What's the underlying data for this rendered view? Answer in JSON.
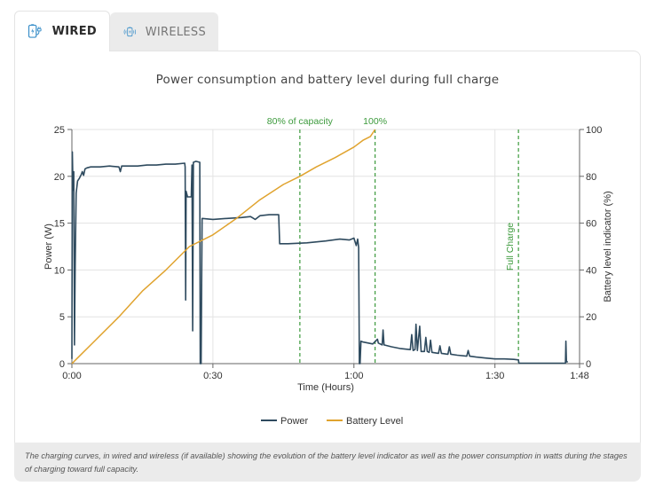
{
  "tabs": [
    {
      "label": "WIRED",
      "icon": "battery-plug-icon",
      "active": true
    },
    {
      "label": "WIRELESS",
      "icon": "wireless-battery-icon",
      "active": false
    }
  ],
  "colors": {
    "power": "#2e4a5e",
    "battery": "#e0a32e",
    "annotation": "#3c9a3c",
    "grid": "#e3e3e3"
  },
  "chart_data": {
    "type": "line",
    "title": "Power consumption and battery level during full charge",
    "xlabel": "Time (Hours)",
    "ylabel_left": "Power (W)",
    "ylabel_right": "Battery level indicator (%)",
    "xlim_minutes": [
      0,
      108
    ],
    "x_tick_labels": [
      "0:00",
      "0:30",
      "1:00",
      "1:30",
      "1:48"
    ],
    "x_tick_minutes": [
      0,
      30,
      60,
      90,
      108
    ],
    "ylim_left": [
      0,
      25
    ],
    "y_left_ticks": [
      0,
      5,
      10,
      15,
      20,
      25
    ],
    "ylim_right": [
      0,
      100
    ],
    "y_right_ticks": [
      0,
      20,
      40,
      60,
      80,
      100
    ],
    "grid": true,
    "legend": "bottom",
    "annotations": [
      {
        "label": "80% of capacity",
        "x_minutes": 48.5,
        "orientation": "horizontal"
      },
      {
        "label": "100%",
        "x_minutes": 64.5,
        "orientation": "horizontal"
      },
      {
        "label": "Full Charge",
        "x_minutes": 95,
        "orientation": "vertical"
      }
    ],
    "series": [
      {
        "name": "Power",
        "axis": "left",
        "points": [
          [
            0,
            0.5
          ],
          [
            0.1,
            22.6
          ],
          [
            0.25,
            18.5
          ],
          [
            0.4,
            20.5
          ],
          [
            0.55,
            2.0
          ],
          [
            0.7,
            10.3
          ],
          [
            0.9,
            18.2
          ],
          [
            1.2,
            19.5
          ],
          [
            1.6,
            19.8
          ],
          [
            2.0,
            20.2
          ],
          [
            2.2,
            20.5
          ],
          [
            2.5,
            20.1
          ],
          [
            2.8,
            20.8
          ],
          [
            3.2,
            20.9
          ],
          [
            4,
            21.0
          ],
          [
            6,
            21.0
          ],
          [
            8,
            21.1
          ],
          [
            10,
            21.0
          ],
          [
            10.3,
            20.5
          ],
          [
            10.6,
            21.1
          ],
          [
            14,
            21.1
          ],
          [
            16,
            21.2
          ],
          [
            18,
            21.2
          ],
          [
            20,
            21.3
          ],
          [
            22,
            21.3
          ],
          [
            24,
            21.4
          ],
          [
            24.1,
            21.0
          ],
          [
            24.2,
            6.8
          ],
          [
            24.3,
            18.4
          ],
          [
            24.6,
            17.8
          ],
          [
            25.4,
            17.8
          ],
          [
            25.55,
            21.2
          ],
          [
            25.7,
            3.5
          ],
          [
            25.85,
            21.5
          ],
          [
            26.4,
            21.6
          ],
          [
            27.2,
            21.5
          ],
          [
            27.3,
            0.0
          ],
          [
            27.5,
            0.0
          ],
          [
            27.7,
            15.5
          ],
          [
            30,
            15.4
          ],
          [
            33,
            15.5
          ],
          [
            36,
            15.6
          ],
          [
            38,
            15.7
          ],
          [
            39,
            15.4
          ],
          [
            40,
            15.8
          ],
          [
            42,
            15.9
          ],
          [
            44,
            15.9
          ],
          [
            44.2,
            12.8
          ],
          [
            46,
            12.8
          ],
          [
            50,
            12.9
          ],
          [
            54,
            13.1
          ],
          [
            57,
            13.3
          ],
          [
            59,
            13.2
          ],
          [
            60,
            13.4
          ],
          [
            60.5,
            12.6
          ],
          [
            60.8,
            13.3
          ],
          [
            61.0,
            12.4
          ],
          [
            61.15,
            0.0
          ],
          [
            61.3,
            0.0
          ],
          [
            61.5,
            2.4
          ],
          [
            62,
            2.3
          ],
          [
            64,
            2.1
          ],
          [
            65,
            2.6
          ],
          [
            65.2,
            2.2
          ],
          [
            66,
            2.0
          ],
          [
            66.2,
            3.6
          ],
          [
            66.4,
            2.0
          ],
          [
            68,
            1.8
          ],
          [
            70,
            1.6
          ],
          [
            72,
            1.5
          ],
          [
            72.3,
            3.1
          ],
          [
            72.6,
            1.4
          ],
          [
            73,
            1.5
          ],
          [
            73.2,
            4.2
          ],
          [
            73.5,
            1.4
          ],
          [
            74,
            4.0
          ],
          [
            74.3,
            1.3
          ],
          [
            75,
            1.3
          ],
          [
            75.3,
            2.8
          ],
          [
            75.6,
            1.3
          ],
          [
            76,
            1.2
          ],
          [
            76.3,
            2.5
          ],
          [
            76.6,
            1.2
          ],
          [
            78,
            1.1
          ],
          [
            78.3,
            1.9
          ],
          [
            78.6,
            1.1
          ],
          [
            80,
            1.0
          ],
          [
            80.3,
            1.8
          ],
          [
            80.6,
            1.0
          ],
          [
            82,
            0.9
          ],
          [
            84,
            0.8
          ],
          [
            84.3,
            1.4
          ],
          [
            84.6,
            0.8
          ],
          [
            86,
            0.7
          ],
          [
            88,
            0.6
          ],
          [
            90,
            0.5
          ],
          [
            92,
            0.5
          ],
          [
            94,
            0.45
          ],
          [
            95,
            0.4
          ],
          [
            95.1,
            0.05
          ],
          [
            100,
            0.05
          ],
          [
            104,
            0.05
          ],
          [
            105,
            0.05
          ],
          [
            105.1,
            2.4
          ],
          [
            105.2,
            0.2
          ],
          [
            105.5,
            0.2
          ]
        ]
      },
      {
        "name": "Battery Level",
        "axis": "right",
        "points": [
          [
            0,
            0
          ],
          [
            1,
            2
          ],
          [
            5,
            10
          ],
          [
            10,
            20
          ],
          [
            15,
            31
          ],
          [
            20,
            40
          ],
          [
            25,
            50
          ],
          [
            30,
            55
          ],
          [
            35,
            62
          ],
          [
            40,
            70
          ],
          [
            45,
            76.5
          ],
          [
            48.5,
            80
          ],
          [
            52,
            84
          ],
          [
            56,
            88
          ],
          [
            60,
            92.5
          ],
          [
            62,
            95.5
          ],
          [
            63.5,
            97
          ],
          [
            64.5,
            100
          ]
        ]
      }
    ]
  },
  "caption": "The charging curves, in wired and wireless (if available) showing the evolution of the battery level indicator as well as the power consumption in watts during the stages of charging toward full capacity."
}
